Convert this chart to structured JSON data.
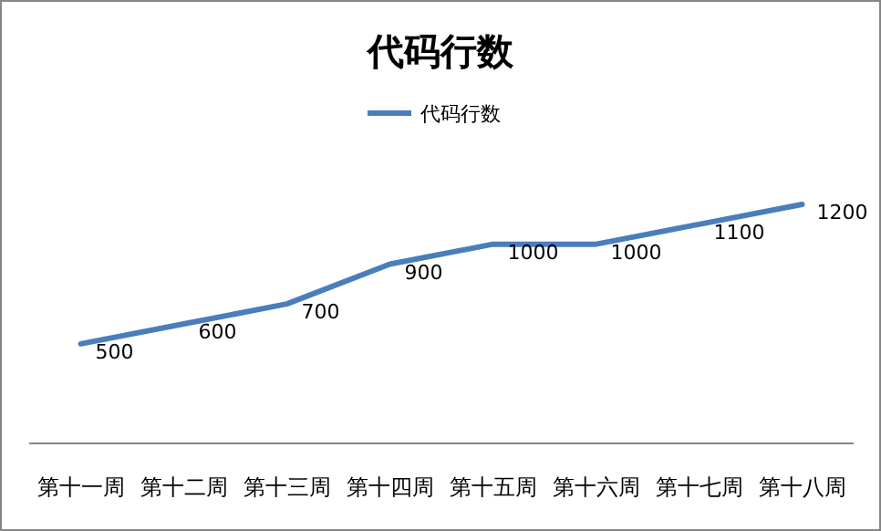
{
  "chart_data": {
    "type": "line",
    "title": "代码行数",
    "categories": [
      "第十一周",
      "第十二周",
      "第十三周",
      "第十四周",
      "第十五周",
      "第十六周",
      "第十七周",
      "第十八周"
    ],
    "series": [
      {
        "name": "代码行数",
        "color": "#4a7ebb",
        "values": [
          500,
          600,
          700,
          900,
          1000,
          1000,
          1100,
          1200
        ]
      }
    ],
    "data_labels": true,
    "legend": "top",
    "tick_labels": "x",
    "grid": false,
    "marker": "none",
    "line_style": "solid"
  }
}
